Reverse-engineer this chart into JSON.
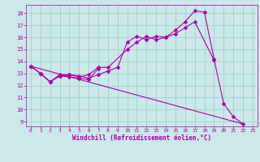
{
  "bg_color": "#cce8e8",
  "grid_color": "#99cccc",
  "line_color": "#aa00aa",
  "xlabel": "Windchill (Refroidissement éolien,°C)",
  "xlim": [
    -0.5,
    23.5
  ],
  "ylim": [
    8.6,
    18.7
  ],
  "yticks": [
    9,
    10,
    11,
    12,
    13,
    14,
    15,
    16,
    17,
    18
  ],
  "xticks": [
    0,
    1,
    2,
    3,
    4,
    5,
    6,
    7,
    8,
    9,
    10,
    11,
    12,
    13,
    14,
    15,
    16,
    17,
    18,
    19,
    20,
    21,
    22,
    23
  ],
  "series": [
    {
      "x": [
        0,
        1,
        2,
        3,
        4,
        5,
        6,
        7,
        8,
        9,
        10,
        11,
        12,
        13,
        14,
        15,
        16,
        17,
        18,
        19,
        20,
        21,
        22
      ],
      "y": [
        13.6,
        13.0,
        12.3,
        12.9,
        12.9,
        12.8,
        12.6,
        12.9,
        13.2,
        13.5,
        15.6,
        16.1,
        15.8,
        16.1,
        16.0,
        16.6,
        17.3,
        18.2,
        18.1,
        14.2,
        10.5,
        9.4,
        8.8
      ],
      "marker": true
    },
    {
      "x": [
        0,
        1,
        2,
        3,
        4,
        5,
        6,
        7,
        8,
        10,
        11,
        12,
        13,
        14,
        15,
        16,
        17,
        19
      ],
      "y": [
        13.6,
        13.0,
        12.3,
        12.8,
        12.9,
        12.7,
        12.9,
        13.5,
        13.5,
        15.0,
        15.6,
        16.1,
        15.8,
        16.0,
        16.3,
        16.8,
        17.3,
        14.1
      ],
      "marker": true
    },
    {
      "x": [
        0,
        1,
        2,
        3,
        4,
        5,
        6,
        7
      ],
      "y": [
        13.6,
        13.0,
        12.3,
        12.8,
        12.7,
        12.6,
        12.5,
        13.4
      ],
      "marker": true
    },
    {
      "x": [
        0,
        22
      ],
      "y": [
        13.6,
        8.8
      ],
      "marker": false
    }
  ]
}
